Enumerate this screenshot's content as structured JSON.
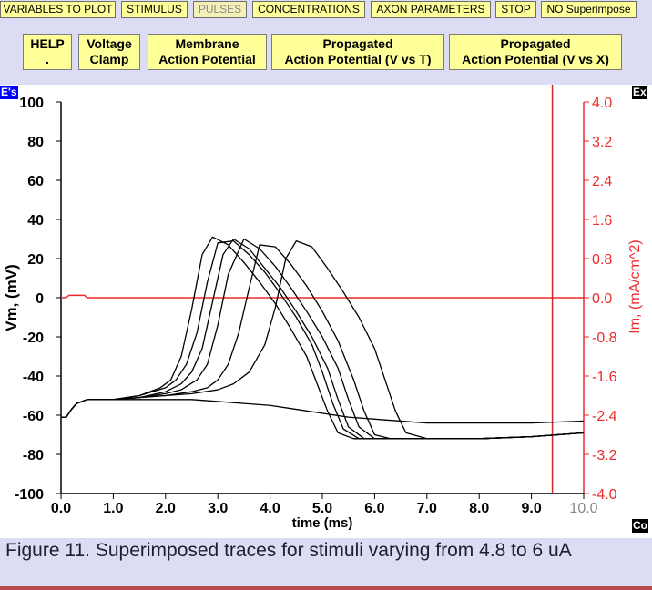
{
  "toolbar": {
    "items": [
      {
        "label": "VARIABLES TO PLOT",
        "enabled": true
      },
      {
        "label": "STIMULUS",
        "enabled": true
      },
      {
        "label": "PULSES",
        "enabled": false
      },
      {
        "label": "CONCENTRATIONS",
        "enabled": true
      },
      {
        "label": "AXON PARAMETERS",
        "enabled": true
      },
      {
        "label": "STOP",
        "enabled": true
      },
      {
        "label": "NO Superimpose",
        "enabled": true
      }
    ]
  },
  "buttons": {
    "help": {
      "line1": "HELP",
      "line2": "."
    },
    "voltage_clamp": {
      "line1": "Voltage",
      "line2": "Clamp"
    },
    "membrane_ap": {
      "line1": "Membrane",
      "line2": "Action Potential"
    },
    "propagated_vt": {
      "line1": "Propagated",
      "line2": "Action Potential (V vs T)"
    },
    "propagated_vx": {
      "line1": "Propagated",
      "line2": "Action Potential (V vs X)"
    }
  },
  "corner_labels": {
    "top_left": "E's",
    "top_right": "Ex",
    "bottom_right": "Co"
  },
  "caption": "Figure 11. Superimposed traces for stimuli varying from 4.8 to 6 uA",
  "colors": {
    "background": "#dcdcf4",
    "button": "#ffff99",
    "vm_axis": "#000000",
    "im_axis": "#ee2a2a",
    "marker": "#cc2a2a"
  },
  "chart_data": {
    "type": "line",
    "xlabel": "time (ms)",
    "ylabel": "Vm, (mV)",
    "y2label": "Im, (mA/cm^2)",
    "xlim": [
      0,
      10
    ],
    "ylim": [
      -100,
      100
    ],
    "y2lim": [
      -4.0,
      4.0
    ],
    "xticks": [
      "0.0",
      "1.0",
      "2.0",
      "3.0",
      "4.0",
      "5.0",
      "6.0",
      "7.0",
      "8.0",
      "9.0",
      "10.0"
    ],
    "yticks": [
      "100",
      "80",
      "60",
      "40",
      "20",
      "0",
      "-20",
      "-40",
      "-60",
      "-80",
      "-100"
    ],
    "y2ticks": [
      "4.0",
      "3.2",
      "2.4",
      "1.6",
      "0.8",
      "0.0",
      "-0.8",
      "-1.6",
      "-2.4",
      "-3.2",
      "-4.0"
    ],
    "marker_time": 9.4,
    "vm_series": [
      {
        "x": [
          0,
          0.1,
          0.2,
          0.3,
          0.4,
          0.5,
          1.0,
          1.5,
          2.0,
          2.5,
          3.0,
          3.5,
          4.0,
          4.5,
          5.0,
          5.5,
          6.0,
          6.5,
          7.0,
          8.0,
          9.0,
          10.0
        ],
        "y": [
          -61,
          -61,
          -57,
          -54,
          -53,
          -52,
          -52,
          -52,
          -52,
          -52,
          -53,
          -54,
          -55,
          -57,
          -59,
          -61,
          -62,
          -63,
          -64,
          -64,
          -64,
          -63
        ]
      },
      {
        "x": [
          0,
          0.1,
          0.2,
          0.3,
          0.4,
          0.5,
          1.0,
          1.5,
          2.0,
          2.5,
          3.0,
          3.3,
          3.6,
          3.9,
          4.1,
          4.3,
          4.5,
          4.8,
          5.1,
          5.4,
          5.7,
          6.0,
          6.2,
          6.4,
          6.6,
          7.0,
          8.0,
          9.0,
          10.0
        ],
        "y": [
          -61,
          -61,
          -57,
          -54,
          -53,
          -52,
          -52,
          -51,
          -50,
          -49,
          -47,
          -44,
          -38,
          -24,
          -5,
          20,
          29,
          26,
          15,
          3,
          -10,
          -26,
          -42,
          -58,
          -69,
          -72,
          -72,
          -71,
          -69
        ]
      },
      {
        "x": [
          0,
          0.1,
          0.2,
          0.3,
          0.4,
          0.5,
          1.0,
          1.5,
          2.0,
          2.5,
          2.8,
          3.0,
          3.2,
          3.4,
          3.6,
          3.8,
          4.1,
          4.4,
          4.7,
          5.0,
          5.3,
          5.6,
          5.8,
          6.0,
          6.3,
          7.0,
          8.0,
          9.0,
          10.0
        ],
        "y": [
          -61,
          -61,
          -57,
          -54,
          -53,
          -52,
          -52,
          -51,
          -50,
          -48,
          -46,
          -42,
          -34,
          -18,
          5,
          27,
          26,
          17,
          6,
          -7,
          -22,
          -42,
          -58,
          -70,
          -72,
          -72,
          -72,
          -71,
          -69
        ]
      },
      {
        "x": [
          0,
          0.1,
          0.2,
          0.3,
          0.4,
          0.5,
          1.0,
          1.5,
          2.0,
          2.3,
          2.6,
          2.8,
          3.0,
          3.2,
          3.5,
          3.8,
          4.1,
          4.4,
          4.7,
          5.0,
          5.3,
          5.5,
          5.7,
          6.0,
          7.0,
          8.0,
          9.0,
          10.0
        ],
        "y": [
          -61,
          -61,
          -57,
          -54,
          -53,
          -52,
          -52,
          -51,
          -49,
          -47,
          -42,
          -34,
          -14,
          12,
          30,
          25,
          16,
          5,
          -7,
          -20,
          -36,
          -52,
          -66,
          -72,
          -72,
          -72,
          -71,
          -69
        ]
      },
      {
        "x": [
          0,
          0.1,
          0.2,
          0.3,
          0.4,
          0.5,
          1.0,
          1.5,
          2.0,
          2.3,
          2.5,
          2.7,
          2.9,
          3.1,
          3.3,
          3.6,
          3.9,
          4.2,
          4.5,
          4.8,
          5.1,
          5.3,
          5.5,
          5.8,
          7.0,
          8.0,
          9.0,
          10.0
        ],
        "y": [
          -61,
          -61,
          -57,
          -54,
          -53,
          -52,
          -52,
          -51,
          -48,
          -44,
          -38,
          -26,
          -2,
          22,
          30,
          25,
          15,
          5,
          -7,
          -20,
          -36,
          -52,
          -66,
          -72,
          -72,
          -72,
          -71,
          -69
        ]
      },
      {
        "x": [
          0,
          0.1,
          0.2,
          0.3,
          0.4,
          0.5,
          1.0,
          1.5,
          2.0,
          2.2,
          2.4,
          2.6,
          2.8,
          3.0,
          3.3,
          3.6,
          3.9,
          4.2,
          4.5,
          4.8,
          5.0,
          5.2,
          5.4,
          5.7,
          7.0,
          8.0,
          9.0,
          10.0
        ],
        "y": [
          -61,
          -61,
          -57,
          -54,
          -53,
          -52,
          -52,
          -50,
          -46,
          -42,
          -34,
          -18,
          8,
          28,
          29,
          22,
          13,
          2,
          -10,
          -24,
          -38,
          -54,
          -67,
          -72,
          -72,
          -72,
          -71,
          -69
        ]
      },
      {
        "x": [
          0,
          0.1,
          0.2,
          0.3,
          0.4,
          0.5,
          1.0,
          1.5,
          1.9,
          2.1,
          2.3,
          2.5,
          2.7,
          2.9,
          3.2,
          3.5,
          3.8,
          4.1,
          4.4,
          4.7,
          4.9,
          5.1,
          5.3,
          5.6,
          7.0,
          8.0,
          9.0,
          10.0
        ],
        "y": [
          -61,
          -61,
          -57,
          -54,
          -53,
          -52,
          -52,
          -50,
          -46,
          -42,
          -30,
          -6,
          22,
          31,
          27,
          18,
          8,
          -3,
          -16,
          -30,
          -44,
          -58,
          -69,
          -72,
          -72,
          -72,
          -71,
          -69
        ]
      }
    ],
    "im_series": {
      "x": [
        0,
        0.1,
        0.15,
        0.45,
        0.5,
        10.0
      ],
      "y": [
        0,
        0,
        0.05,
        0.05,
        0,
        0
      ]
    }
  }
}
